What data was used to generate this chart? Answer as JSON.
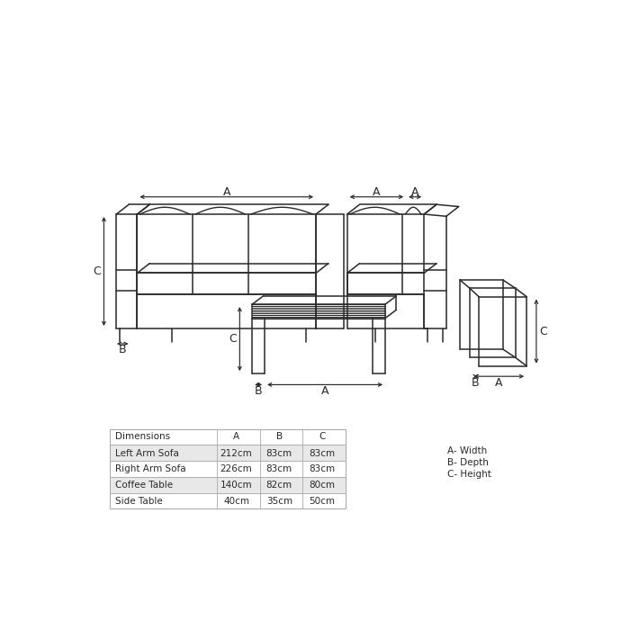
{
  "bg_color": "#ffffff",
  "line_color": "#2a2a2a",
  "lw": 1.1,
  "table_rows": [
    {
      "label": "Left Arm Sofa",
      "A": "212cm",
      "B": "83cm",
      "C": "83cm",
      "shaded": true
    },
    {
      "label": "Right Arm Sofa",
      "A": "226cm",
      "B": "83cm",
      "C": "83cm",
      "shaded": false
    },
    {
      "label": "Coffee Table",
      "A": "140cm",
      "B": "82cm",
      "C": "80cm",
      "shaded": true
    },
    {
      "label": "Side Table",
      "A": "40cm",
      "B": "35cm",
      "C": "50cm",
      "shaded": false
    }
  ],
  "legend_lines": [
    "A- Width",
    "B- Depth",
    "C- Height"
  ],
  "header": {
    "label": "Dimensions",
    "A": "A",
    "B": "B",
    "C": "C"
  },
  "shaded_color": "#e8e8e8",
  "table_border_color": "#aaaaaa"
}
